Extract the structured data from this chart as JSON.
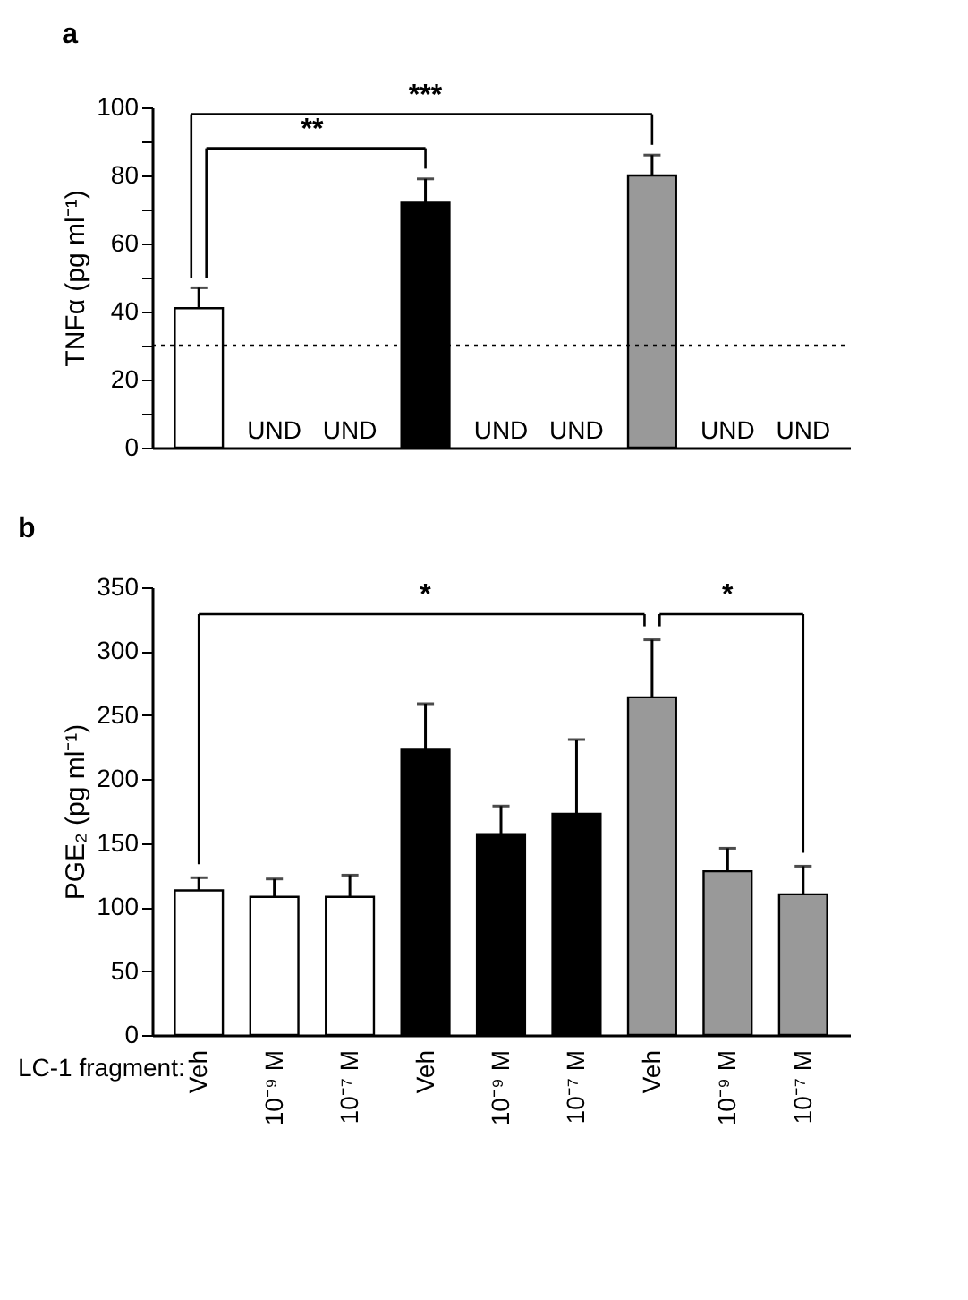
{
  "chart_data": [
    {
      "type": "bar",
      "title": "a",
      "ylabel": "TNFα (pg ml⁻¹)",
      "categories": [
        null,
        null,
        null,
        null,
        null,
        null,
        null,
        null,
        null
      ],
      "values": [
        41,
        null,
        null,
        72,
        null,
        null,
        80,
        null,
        null
      ],
      "errors": [
        [
          41,
          47
        ],
        null,
        null,
        [
          72,
          79
        ],
        null,
        null,
        [
          80,
          86
        ],
        null,
        null
      ],
      "colors": [
        "#ffffff",
        "#ffffff",
        "#ffffff",
        "#000000",
        "#000000",
        "#000000",
        "#999999",
        "#999999",
        "#999999"
      ],
      "value_labels": [
        null,
        "UND",
        "UND",
        null,
        "UND",
        "UND",
        null,
        "UND",
        "UND"
      ],
      "ylim": [
        0,
        100
      ],
      "yticks": [
        0,
        {
          "value": 10,
          "label": null
        },
        20,
        {
          "value": 30,
          "label": null
        },
        40,
        {
          "value": 50,
          "label": null
        },
        60,
        {
          "value": 70,
          "label": null
        },
        80,
        {
          "value": 90,
          "label": null
        },
        100
      ],
      "ref_lines": [
        {
          "axis": "y",
          "value": 30,
          "color": "#000000",
          "line_style": "dotted"
        }
      ],
      "annotations": [
        "**",
        "***"
      ],
      "tick_labels": "y",
      "grid": false,
      "legend": false
    },
    {
      "type": "bar",
      "title": "b",
      "ylabel": "PGE₂ (pg ml⁻¹)",
      "xlabel": "LC-1 fragment:",
      "categories": [
        "Veh",
        "10⁻⁹ M",
        "10⁻⁷ M",
        "Veh",
        "10⁻⁹ M",
        "10⁻⁷ M",
        "Veh",
        "10⁻⁹ M",
        "10⁻⁷ M"
      ],
      "values": [
        113,
        108,
        108,
        223,
        157,
        173,
        264,
        128,
        110
      ],
      "errors": [
        [
          113,
          123
        ],
        [
          108,
          122
        ],
        [
          108,
          125
        ],
        [
          223,
          259
        ],
        [
          157,
          179
        ],
        [
          173,
          231
        ],
        [
          264,
          309
        ],
        [
          128,
          146
        ],
        [
          110,
          132
        ]
      ],
      "colors": [
        "#ffffff",
        "#ffffff",
        "#ffffff",
        "#000000",
        "#000000",
        "#000000",
        "#999999",
        "#999999",
        "#999999"
      ],
      "ylim": [
        0,
        350
      ],
      "yticks": [
        0,
        50,
        100,
        150,
        200,
        250,
        300,
        350
      ],
      "annotations": [
        "*",
        "*"
      ],
      "grid": false,
      "legend": false
    }
  ]
}
